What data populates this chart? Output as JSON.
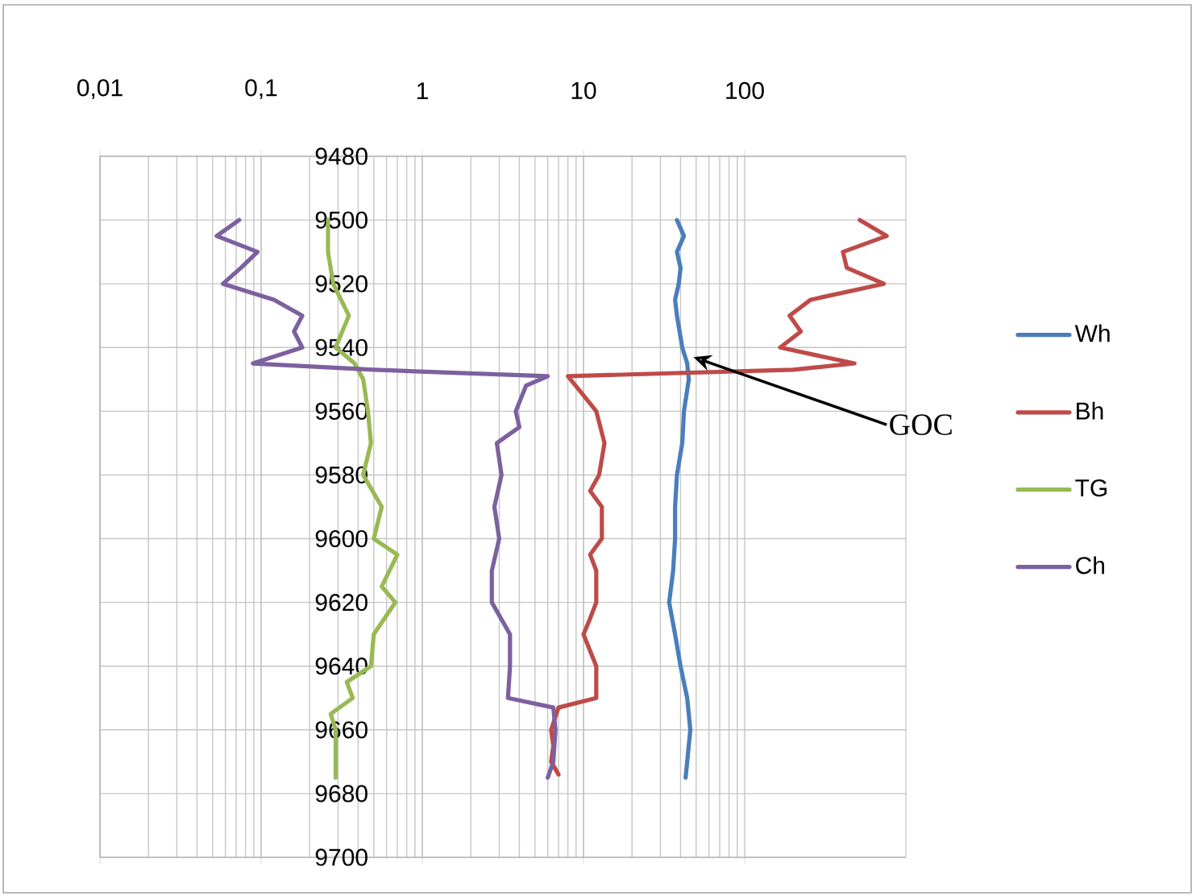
{
  "chart_data": {
    "type": "line",
    "log": "x",
    "grid": true,
    "legend": "right",
    "xlim": [
      0.01,
      1000
    ],
    "ylim": [
      9700,
      9480
    ],
    "xticks": [
      {
        "value": 0.01,
        "label": "0,01"
      },
      {
        "value": 0.1,
        "label": "0,1"
      },
      1,
      10,
      100
    ],
    "yticks": [
      9480,
      9500,
      9520,
      9540,
      9560,
      9580,
      9600,
      9620,
      9640,
      9660,
      9680,
      9700
    ],
    "annotations": [
      {
        "text": "GOC",
        "x": 48,
        "y": 9543
      }
    ],
    "series": [
      {
        "name": "Wh",
        "color": "#4a7ebb",
        "x": [
          38,
          42,
          38,
          40,
          39,
          37,
          38,
          41,
          44,
          45,
          42,
          41,
          38,
          37,
          37,
          36,
          34,
          37,
          40,
          44,
          46,
          44,
          43
        ],
        "values": [
          9500,
          9505,
          9510,
          9515,
          9520,
          9525,
          9530,
          9540,
          9545,
          9550,
          9560,
          9570,
          9580,
          9590,
          9600,
          9610,
          9620,
          9630,
          9640,
          9650,
          9660,
          9670,
          9675
        ]
      },
      {
        "name": "Bh",
        "color": "#be4b48",
        "x": [
          517,
          760,
          407,
          430,
          730,
          257,
          190,
          223,
          166,
          480,
          200,
          8,
          10,
          12,
          13.5,
          12.5,
          11,
          13,
          13,
          11,
          12,
          12,
          11,
          10,
          12,
          12,
          7,
          6.3,
          6.5,
          6.3,
          7
        ],
        "values": [
          9500,
          9505,
          9510,
          9515,
          9520,
          9525,
          9530,
          9535,
          9540,
          9545,
          9547,
          9549,
          9555,
          9560,
          9570,
          9580,
          9585,
          9590,
          9600,
          9605,
          9610,
          9620,
          9625,
          9630,
          9640,
          9650,
          9653,
          9660,
          9665,
          9670,
          9674
        ]
      },
      {
        "name": "TG",
        "color": "#98b954",
        "x": [
          0.26,
          0.26,
          0.28,
          0.35,
          0.29,
          0.38,
          0.43,
          0.46,
          0.48,
          0.43,
          0.56,
          0.5,
          0.7,
          0.56,
          0.68,
          0.5,
          0.48,
          0.34,
          0.37,
          0.27,
          0.29,
          0.29
        ],
        "values": [
          9500,
          9510,
          9520,
          9530,
          9540,
          9545,
          9550,
          9560,
          9570,
          9580,
          9590,
          9600,
          9605,
          9615,
          9620,
          9630,
          9640,
          9645,
          9650,
          9655,
          9660,
          9675
        ]
      },
      {
        "name": "Ch",
        "color": "#7d60a0",
        "x": [
          0.073,
          0.053,
          0.095,
          0.075,
          0.058,
          0.12,
          0.18,
          0.16,
          0.18,
          0.089,
          0.5,
          6,
          4.4,
          3.8,
          4,
          2.9,
          3.1,
          2.8,
          3.0,
          2.7,
          2.7,
          3.5,
          3.5,
          3.4,
          6.5,
          6.7,
          6.5,
          6
        ],
        "values": [
          9500,
          9505,
          9510,
          9515,
          9520,
          9525,
          9530,
          9535,
          9540,
          9545,
          9547,
          9549,
          9552,
          9560,
          9565,
          9570,
          9580,
          9590,
          9600,
          9610,
          9620,
          9630,
          9640,
          9650,
          9653,
          9660,
          9670,
          9675
        ]
      }
    ]
  }
}
